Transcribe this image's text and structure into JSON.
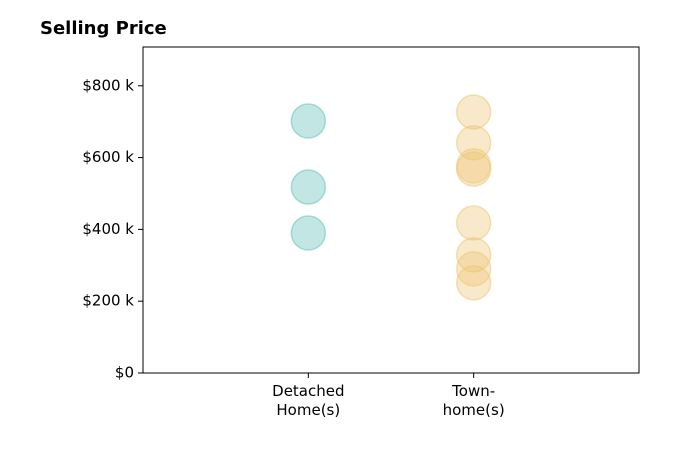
{
  "chart_data": {
    "type": "strip",
    "title": "Selling Price",
    "categories": [
      "Detached\nHome(s)",
      "Town-\nhome(s)"
    ],
    "values": [
      [
        702000,
        518000,
        390000
      ],
      [
        727000,
        641000,
        577000,
        568000,
        418000,
        329000,
        290000,
        251000
      ]
    ],
    "colors": [
      "#5fbdb5",
      "#ecc574"
    ],
    "ylim": [
      0,
      908000
    ],
    "yticks": [
      {
        "value": 0,
        "label": "$0"
      },
      {
        "value": 200000,
        "label": "$200 k"
      },
      {
        "value": 400000,
        "label": "$400 k"
      },
      {
        "value": 600000,
        "label": "$600 k"
      },
      {
        "value": 800000,
        "label": "$800 k"
      }
    ]
  }
}
